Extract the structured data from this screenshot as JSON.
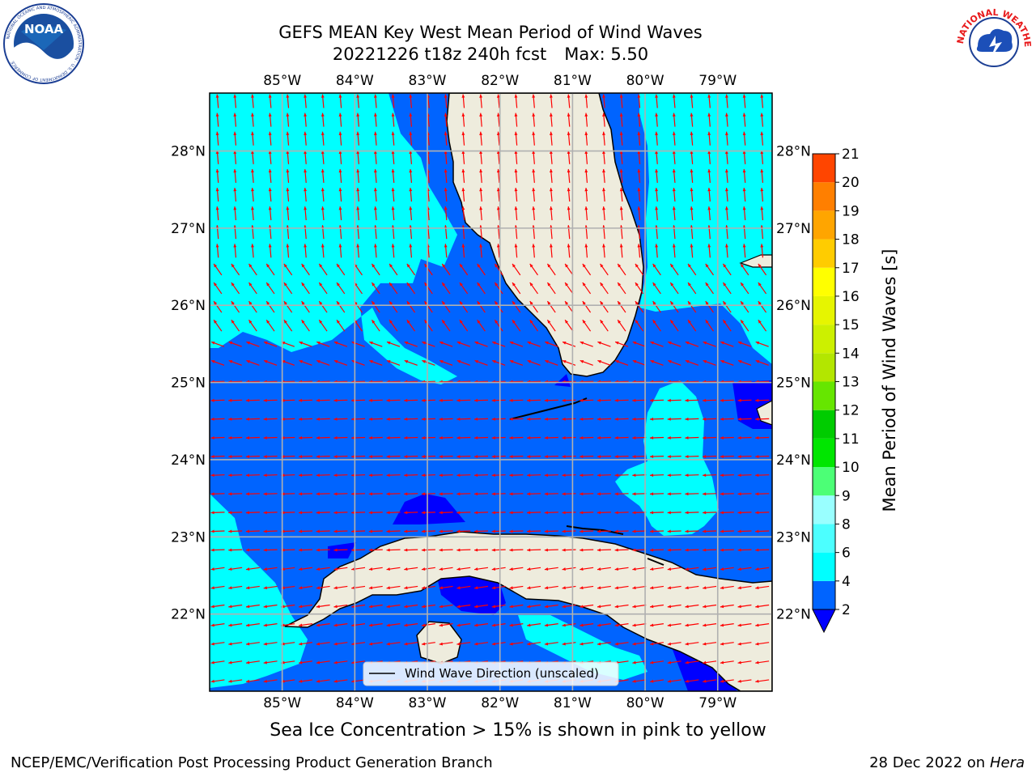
{
  "header": {
    "title_line1": "GEFS MEAN Key West Mean Period of Wind Waves",
    "title_run": "20221226 t18z 240h fcst",
    "title_max": "Max: 5.50"
  },
  "logos": {
    "left": "NOAA",
    "left_ring_text": "NATIONAL OCEANIC AND ATMOSPHERIC ADMINISTRATION · U.S. DEPARTMENT OF COMMERCE",
    "right_ring_text": "NATIONAL WEATHER SERVICE"
  },
  "map": {
    "lon_labels": [
      "85°W",
      "84°W",
      "83°W",
      "82°W",
      "81°W",
      "80°W",
      "79°W"
    ],
    "lon_values": [
      -85,
      -84,
      -83,
      -82,
      -81,
      -80,
      -79
    ],
    "lat_labels": [
      "22°N",
      "23°N",
      "24°N",
      "25°N",
      "26°N",
      "27°N",
      "28°N"
    ],
    "lat_values": [
      22,
      23,
      24,
      25,
      26,
      27,
      28
    ],
    "extent": {
      "lon_min": -86.0,
      "lon_max": -78.25,
      "lat_min": 21.0,
      "lat_max": 28.75
    },
    "legend_label": "Wind Wave Direction (unscaled)",
    "wind_direction": "mostly westward in the south, northward/north-northwestward in the north",
    "colors": {
      "land": "#eeecdd",
      "ocean_dark": "#0000ff",
      "ocean_mid": "#0064ff",
      "ocean_light": "#00ffff",
      "arrow": "#ff0000",
      "grid": "#b0b0b0"
    }
  },
  "colorbar": {
    "label": "Mean Period of Wind Waves [s]",
    "ticks": [
      2,
      4,
      6,
      8,
      9,
      10,
      11,
      12,
      13,
      14,
      15,
      16,
      17,
      18,
      19,
      20,
      21
    ],
    "colors": [
      "#0064ff",
      "#00ffff",
      "#4cffff",
      "#99ffff",
      "#4cff76",
      "#00e600",
      "#00cc00",
      "#66e600",
      "#b3e600",
      "#ccf000",
      "#e6f500",
      "#ffff00",
      "#ffcc00",
      "#ffa500",
      "#ff7f00",
      "#ff4500",
      "#ff2000",
      "#ff0000"
    ],
    "under_color": "#0000ff"
  },
  "footer": {
    "note": "Sea Ice Concentration > 15% is shown in pink to yellow",
    "credit": "NCEP/EMC/Verification Post Processing Product Generation Branch",
    "date": "28 Dec 2022 on",
    "machine": "Hera"
  }
}
